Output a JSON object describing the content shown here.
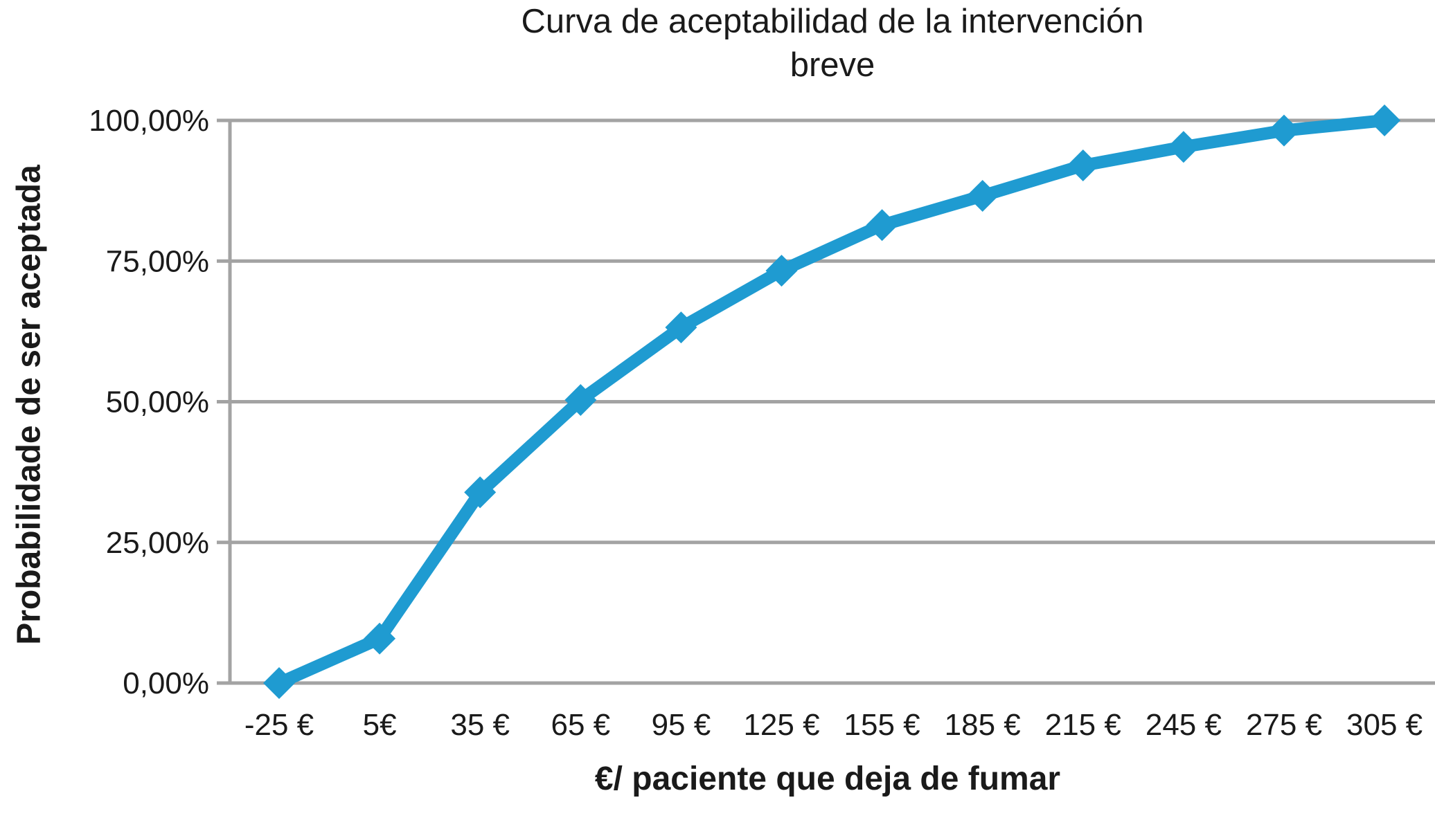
{
  "chart_data": {
    "type": "line",
    "title": "Curva de aceptabilidad de la intervención breve",
    "title_lines": [
      "Curva de aceptabilidad de la intervención",
      "breve"
    ],
    "xlabel": "€/ paciente que deja de fumar",
    "ylabel": "Probabilidade de ser aceptada",
    "categories": [
      "-25 €",
      "5€",
      "35 €",
      "65 €",
      "95 €",
      "125 €",
      "155 €",
      "185 €",
      "215 €",
      "245 €",
      "275 €",
      "305 €"
    ],
    "x_values": [
      -25,
      5,
      35,
      65,
      95,
      125,
      155,
      185,
      215,
      245,
      275,
      305
    ],
    "values": [
      0.0,
      7.9,
      33.9,
      50.3,
      63.2,
      73.3,
      81.4,
      86.6,
      92.0,
      95.3,
      98.2,
      100.0
    ],
    "y_ticks": {
      "values": [
        0,
        25,
        50,
        75,
        100
      ],
      "labels": [
        "0,00%",
        "25,00%",
        "50,00%",
        "75,00%",
        "100,00%"
      ]
    },
    "ylim": [
      0,
      100
    ],
    "grid": true,
    "legend": false,
    "marker": "diamond",
    "colors": {
      "line": "#1f9bd1",
      "grid": "#a3a3a3",
      "axis": "#a3a3a3",
      "text": "#1a1a1a"
    }
  }
}
